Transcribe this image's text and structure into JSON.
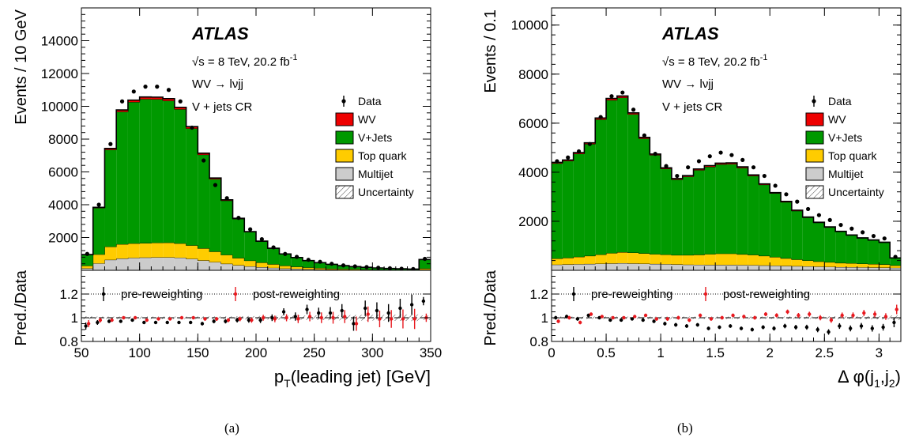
{
  "common": {
    "experiment": "ATLAS",
    "energy_label": "√s = 8 TeV, 20.2 fb",
    "energy_sup": "-1",
    "process_label": "WV → lνjj",
    "region_label": "V + jets CR",
    "legend": [
      "Data",
      "WV",
      "V+Jets",
      "Top quark",
      "Multijet",
      "Uncertainty"
    ],
    "ratio_legend": [
      "pre-reweighting",
      "post-reweighting"
    ],
    "ratio_ylabel": "Pred./Data",
    "colors": {
      "wv": "#ee0000",
      "vjets": "#009900",
      "top": "#ffcc00",
      "multijet": "#cccccc",
      "data": "#000000",
      "post": "#e8191f"
    }
  },
  "chart_data": [
    {
      "type": "bar",
      "panel": "(a)",
      "caption": "(a)",
      "ylabel": "Events / 10 GeV",
      "xlabel": "p",
      "xlabel_sub": "T",
      "xlabel_rest": "(leading jet) [GeV]",
      "xlim": [
        50,
        350
      ],
      "ylim": [
        0,
        16000
      ],
      "yticks": [
        2000,
        4000,
        6000,
        8000,
        10000,
        12000,
        14000
      ],
      "ytick_labels": [
        "2000",
        "4000",
        "6000",
        "8000",
        "10000",
        "12000",
        "14000"
      ],
      "xticks": [
        50,
        100,
        150,
        200,
        250,
        300,
        350
      ],
      "xtick_labels": [
        "50",
        "100",
        "150",
        "200",
        "250",
        "300",
        "350"
      ],
      "ratio_ylim": [
        0.8,
        1.4
      ],
      "ratio_yticks": [
        0.8,
        1,
        1.2
      ],
      "ratio_ytick_labels": [
        "0.8",
        "1",
        "1.2"
      ],
      "bin_edges": [
        50,
        60,
        70,
        80,
        90,
        100,
        110,
        120,
        130,
        140,
        150,
        160,
        170,
        180,
        190,
        200,
        210,
        220,
        230,
        240,
        250,
        260,
        270,
        280,
        290,
        300,
        310,
        320,
        330,
        340,
        350
      ],
      "series": [
        {
          "name": "Multijet",
          "values": [
            120,
            420,
            640,
            720,
            760,
            780,
            790,
            790,
            770,
            700,
            600,
            500,
            400,
            310,
            240,
            190,
            150,
            110,
            90,
            70,
            55,
            40,
            30,
            25,
            20,
            15,
            12,
            10,
            8,
            40
          ]
        },
        {
          "name": "Top quark",
          "values": [
            160,
            550,
            800,
            870,
            880,
            880,
            890,
            900,
            870,
            820,
            740,
            640,
            540,
            440,
            350,
            280,
            220,
            170,
            130,
            100,
            80,
            60,
            50,
            40,
            30,
            25,
            20,
            15,
            12,
            70
          ]
        },
        {
          "name": "V+Jets",
          "values": [
            670,
            2830,
            5910,
            8080,
            8620,
            8780,
            8750,
            8650,
            8180,
            7130,
            5710,
            4420,
            3310,
            2380,
            1740,
            1290,
            960,
            710,
            550,
            420,
            325,
            260,
            200,
            155,
            130,
            100,
            78,
            65,
            50,
            545
          ]
        },
        {
          "name": "WV",
          "values": [
            10,
            40,
            80,
            110,
            120,
            130,
            130,
            130,
            120,
            110,
            90,
            70,
            50,
            40,
            30,
            20,
            15,
            10,
            10,
            5,
            5,
            5,
            5,
            5,
            5,
            5,
            5,
            5,
            5,
            5
          ]
        }
      ],
      "data_points": [
        1000,
        4000,
        7700,
        10300,
        10900,
        11200,
        11200,
        11000,
        10300,
        8700,
        6700,
        5200,
        4400,
        3200,
        2500,
        1900,
        1400,
        1000,
        820,
        640,
        520,
        400,
        300,
        240,
        200,
        160,
        125,
        100,
        80,
        700
      ],
      "ratio_pre": [
        0.93,
        0.96,
        0.97,
        0.97,
        0.98,
        0.96,
        0.96,
        0.96,
        0.96,
        0.96,
        0.95,
        0.97,
        0.97,
        0.98,
        0.98,
        0.98,
        1.0,
        1.05,
        1.01,
        1.07,
        1.04,
        1.04,
        1.06,
        0.95,
        1.08,
        1.06,
        1.04,
        1.08,
        1.11,
        1.14
      ],
      "ratio_post": [
        0.95,
        0.98,
        0.98,
        1.0,
        1.0,
        0.98,
        0.99,
        0.99,
        1.0,
        1.0,
        0.99,
        0.99,
        0.98,
        0.99,
        0.98,
        1.0,
        0.99,
        1.0,
        0.99,
        1.01,
        1.0,
        1.0,
        1.01,
        0.95,
        1.03,
        0.99,
        0.99,
        0.99,
        0.99,
        1.0
      ],
      "ratio_err": [
        0.03,
        0.02,
        0.015,
        0.012,
        0.012,
        0.012,
        0.012,
        0.012,
        0.012,
        0.013,
        0.015,
        0.017,
        0.018,
        0.02,
        0.022,
        0.025,
        0.028,
        0.03,
        0.035,
        0.04,
        0.045,
        0.05,
        0.055,
        0.06,
        0.065,
        0.07,
        0.075,
        0.08,
        0.085,
        0.035
      ],
      "unc_band": [
        0.012,
        0.01,
        0.01,
        0.01,
        0.01,
        0.01,
        0.01,
        0.01,
        0.01,
        0.01,
        0.011,
        0.011,
        0.012,
        0.013,
        0.014,
        0.015,
        0.016,
        0.017,
        0.018,
        0.019,
        0.02,
        0.021,
        0.022,
        0.023,
        0.024,
        0.025,
        0.026,
        0.027,
        0.028,
        0.02
      ]
    },
    {
      "type": "bar",
      "panel": "(b)",
      "caption": "(b)",
      "ylabel": "Events / 0.1",
      "xlabel": "Δ φ(j",
      "xlabel_sub1": "1",
      "xlabel_mid": ",j",
      "xlabel_sub2": "2",
      "xlabel_rest": ")",
      "xlim": [
        0,
        3.2
      ],
      "ylim": [
        0,
        10700
      ],
      "yticks": [
        2000,
        4000,
        6000,
        8000,
        10000
      ],
      "ytick_labels": [
        "2000",
        "4000",
        "6000",
        "8000",
        "10000"
      ],
      "xticks": [
        0,
        0.5,
        1,
        1.5,
        2,
        2.5,
        3
      ],
      "xtick_labels": [
        "0",
        "0.5",
        "1",
        "1.5",
        "2",
        "2.5",
        "3"
      ],
      "ratio_ylim": [
        0.8,
        1.4
      ],
      "ratio_yticks": [
        0.8,
        1,
        1.2
      ],
      "ratio_ytick_labels": [
        "0.8",
        "1",
        "1.2"
      ],
      "bin_edges": [
        0,
        0.1,
        0.2,
        0.3,
        0.4,
        0.5,
        0.6,
        0.7,
        0.8,
        0.9,
        1.0,
        1.1,
        1.2,
        1.3,
        1.4,
        1.5,
        1.6,
        1.7,
        1.8,
        1.9,
        2.0,
        2.1,
        2.2,
        2.3,
        2.4,
        2.5,
        2.6,
        2.7,
        2.8,
        2.9,
        3.0,
        3.1,
        3.2
      ],
      "series": [
        {
          "name": "Multijet",
          "values": [
            230,
            240,
            250,
            260,
            270,
            280,
            290,
            280,
            270,
            260,
            250,
            240,
            230,
            225,
            220,
            220,
            220,
            215,
            210,
            200,
            190,
            180,
            170,
            160,
            150,
            140,
            130,
            125,
            120,
            115,
            110,
            100
          ]
        },
        {
          "name": "Top quark",
          "values": [
            250,
            270,
            300,
            330,
            370,
            420,
            450,
            440,
            420,
            400,
            390,
            380,
            390,
            410,
            440,
            460,
            460,
            440,
            420,
            390,
            350,
            310,
            270,
            240,
            210,
            190,
            170,
            160,
            150,
            140,
            130,
            100
          ]
        },
        {
          "name": "V+Jets",
          "values": [
            3880,
            3950,
            4200,
            4560,
            5510,
            6240,
            6300,
            5640,
            4680,
            4040,
            3500,
            3080,
            3200,
            3450,
            3560,
            3640,
            3650,
            3520,
            3220,
            2900,
            2600,
            2290,
            1980,
            1750,
            1580,
            1420,
            1270,
            1140,
            1040,
            970,
            890,
            300
          ]
        },
        {
          "name": "WV",
          "values": [
            40,
            40,
            50,
            50,
            60,
            70,
            70,
            60,
            50,
            40,
            40,
            40,
            40,
            45,
            50,
            50,
            50,
            45,
            40,
            35,
            30,
            30,
            30,
            25,
            20,
            20,
            20,
            15,
            15,
            15,
            15,
            5
          ]
        }
      ],
      "data_points": [
        4450,
        4600,
        4850,
        5150,
        6250,
        7100,
        7250,
        6550,
        5500,
        4750,
        4250,
        3850,
        4200,
        4450,
        4650,
        4800,
        4700,
        4500,
        4200,
        3850,
        3450,
        3100,
        2800,
        2500,
        2250,
        2050,
        1850,
        1700,
        1550,
        1400,
        1300,
        550
      ],
      "ratio_pre": [
        1.0,
        1.01,
        0.99,
        1.02,
        1.0,
        0.98,
        0.98,
        0.99,
        0.98,
        0.97,
        0.95,
        0.94,
        0.93,
        0.94,
        0.91,
        0.92,
        0.93,
        0.91,
        0.9,
        0.92,
        0.91,
        0.93,
        0.92,
        0.92,
        0.9,
        0.88,
        0.93,
        0.91,
        0.93,
        0.91,
        0.92,
        0.96
      ],
      "ratio_post": [
        0.97,
        1.0,
        0.96,
        1.03,
        1.01,
        1.0,
        1.0,
        1.01,
        1.02,
        0.99,
        0.99,
        1.0,
        0.98,
        1.02,
        0.99,
        1.0,
        1.02,
        1.01,
        1.0,
        1.03,
        1.02,
        1.05,
        1.02,
        1.03,
        1.0,
        0.98,
        1.02,
        1.02,
        1.04,
        1.03,
        1.01,
        1.07
      ],
      "ratio_err": [
        0.015,
        0.015,
        0.015,
        0.014,
        0.013,
        0.012,
        0.012,
        0.013,
        0.014,
        0.015,
        0.016,
        0.016,
        0.016,
        0.015,
        0.015,
        0.015,
        0.015,
        0.015,
        0.016,
        0.017,
        0.018,
        0.019,
        0.02,
        0.021,
        0.022,
        0.023,
        0.024,
        0.025,
        0.026,
        0.027,
        0.028,
        0.04
      ],
      "unc_band": [
        0.01,
        0.01,
        0.01,
        0.01,
        0.01,
        0.01,
        0.01,
        0.01,
        0.01,
        0.01,
        0.01,
        0.01,
        0.01,
        0.01,
        0.01,
        0.01,
        0.01,
        0.01,
        0.01,
        0.01,
        0.01,
        0.01,
        0.01,
        0.01,
        0.01,
        0.012,
        0.012,
        0.012,
        0.013,
        0.013,
        0.014,
        0.02
      ]
    }
  ]
}
